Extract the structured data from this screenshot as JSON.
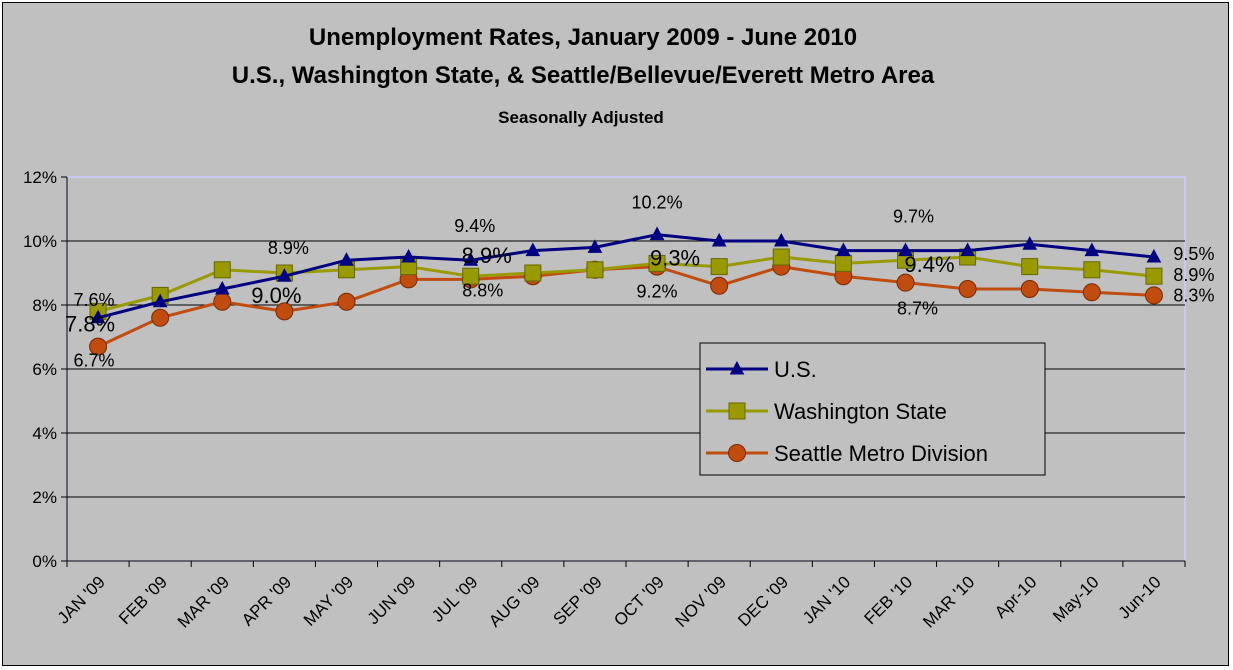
{
  "chart_data": {
    "type": "line",
    "title": "Unemployment Rates, January 2009 - June 2010",
    "title_line2": "U.S., Washington State, & Seattle/Bellevue/Everett Metro Area",
    "subtitle": "Seasonally Adjusted",
    "categories": [
      "JAN '09",
      "FEB '09",
      "MAR '09",
      "APR '09",
      "MAY '09",
      "JUN '09",
      "JUL '09",
      "AUG '09",
      "SEP '09",
      "OCT '09",
      "NOV '09",
      "DEC '09",
      "JAN '10",
      "FEB '10",
      "MAR '10",
      "Apr-10",
      "May-10",
      "Jun-10"
    ],
    "y_ticks": [
      "0%",
      "2%",
      "4%",
      "6%",
      "8%",
      "10%",
      "12%"
    ],
    "ylim": [
      0,
      12
    ],
    "grid": true,
    "legend_position": "center-right inside plot",
    "series": [
      {
        "name": "U.S.",
        "color": "#000080",
        "marker": "triangle",
        "values": [
          7.6,
          8.1,
          8.5,
          8.9,
          9.4,
          9.5,
          9.4,
          9.7,
          9.8,
          10.2,
          10.0,
          10.0,
          9.7,
          9.7,
          9.7,
          9.9,
          9.7,
          9.5
        ]
      },
      {
        "name": "Washington State",
        "color": "#999900",
        "marker": "square",
        "values": [
          7.8,
          8.3,
          9.1,
          9.0,
          9.1,
          9.2,
          8.9,
          9.0,
          9.1,
          9.3,
          9.2,
          9.5,
          9.3,
          9.4,
          9.5,
          9.2,
          9.1,
          8.9
        ]
      },
      {
        "name": "Seattle Metro Division",
        "color": "#c04c10",
        "marker": "circle",
        "values": [
          6.7,
          7.6,
          8.1,
          7.8,
          8.1,
          8.8,
          8.8,
          8.9,
          9.1,
          9.2,
          8.6,
          9.2,
          8.9,
          8.7,
          8.5,
          8.5,
          8.4,
          8.3
        ]
      }
    ],
    "data_labels": [
      {
        "text": "7.6%",
        "series": 0,
        "index": 0
      },
      {
        "text": "7.8%",
        "series": 1,
        "index": 0
      },
      {
        "text": "6.7%",
        "series": 2,
        "index": 0
      },
      {
        "text": "8.9%",
        "series": 0,
        "index": 3
      },
      {
        "text": "9.0%",
        "series": 1,
        "index": 3
      },
      {
        "text": "9.4%",
        "series": 0,
        "index": 6
      },
      {
        "text": "8.9%",
        "series": 1,
        "index": 6
      },
      {
        "text": "8.8%",
        "series": 2,
        "index": 6
      },
      {
        "text": "10.2%",
        "series": 0,
        "index": 9
      },
      {
        "text": "9.3%",
        "series": 1,
        "index": 9
      },
      {
        "text": "9.2%",
        "series": 2,
        "index": 9
      },
      {
        "text": "9.7%",
        "series": 0,
        "index": 13
      },
      {
        "text": "9.4%",
        "series": 1,
        "index": 13
      },
      {
        "text": "8.7%",
        "series": 2,
        "index": 13
      },
      {
        "text": "9.5%",
        "series": 0,
        "index": 17
      },
      {
        "text": "8.9%",
        "series": 1,
        "index": 17
      },
      {
        "text": "8.3%",
        "series": 2,
        "index": 17
      }
    ]
  }
}
